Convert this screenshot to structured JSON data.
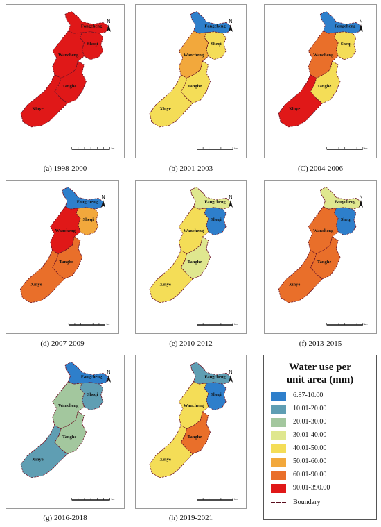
{
  "legend": {
    "title_line1": "Water  use per",
    "title_line2": "unit area (mm)",
    "classes": [
      {
        "label": "6.87-10.00",
        "color": "#2e7fcb"
      },
      {
        "label": "10.01-20.00",
        "color": "#5f9eb3"
      },
      {
        "label": "20.01-30.00",
        "color": "#a3c79e"
      },
      {
        "label": "30.01-40.00",
        "color": "#dfe78f"
      },
      {
        "label": "40.01-50.00",
        "color": "#f4dd57"
      },
      {
        "label": "50.01-60.00",
        "color": "#f2a83c"
      },
      {
        "label": "60.01-90.00",
        "color": "#e96f2a"
      },
      {
        "label": "90.01-390.00",
        "color": "#e01818"
      }
    ],
    "boundary_label": "Boundary"
  },
  "region_names": {
    "fangcheng": "Fangcheng",
    "sheqi": "Sheqi",
    "wancheng": "Wancheng",
    "tanghe": "Tanghe",
    "xinye": "Xinye"
  },
  "north_label": "N",
  "scale_label": "km",
  "panels": [
    {
      "caption": "(a)  1998-2000",
      "classes": {
        "fangcheng": 7,
        "sheqi": 7,
        "wancheng": 7,
        "tanghe": 7,
        "xinye": 7
      }
    },
    {
      "caption": "(b)  2001-2003",
      "classes": {
        "fangcheng": 0,
        "sheqi": 4,
        "wancheng": 5,
        "tanghe": 4,
        "xinye": 4
      }
    },
    {
      "caption": "(C)  2004-2006",
      "classes": {
        "fangcheng": 0,
        "sheqi": 4,
        "wancheng": 6,
        "tanghe": 4,
        "xinye": 7
      }
    },
    {
      "caption": "(d)  2007-2009",
      "classes": {
        "fangcheng": 0,
        "sheqi": 5,
        "wancheng": 7,
        "tanghe": 6,
        "xinye": 6
      }
    },
    {
      "caption": "(e)  2010-2012",
      "classes": {
        "fangcheng": 3,
        "sheqi": 0,
        "wancheng": 4,
        "tanghe": 3,
        "xinye": 4
      }
    },
    {
      "caption": "(f)  2013-2015",
      "classes": {
        "fangcheng": 3,
        "sheqi": 0,
        "wancheng": 6,
        "tanghe": 6,
        "xinye": 6
      }
    },
    {
      "caption": "(g)  2016-2018",
      "classes": {
        "fangcheng": 0,
        "sheqi": 1,
        "wancheng": 2,
        "tanghe": 2,
        "xinye": 1
      }
    },
    {
      "caption": "(h)  2019-2021",
      "classes": {
        "fangcheng": 1,
        "sheqi": 0,
        "wancheng": 4,
        "tanghe": 6,
        "xinye": 4
      }
    }
  ]
}
